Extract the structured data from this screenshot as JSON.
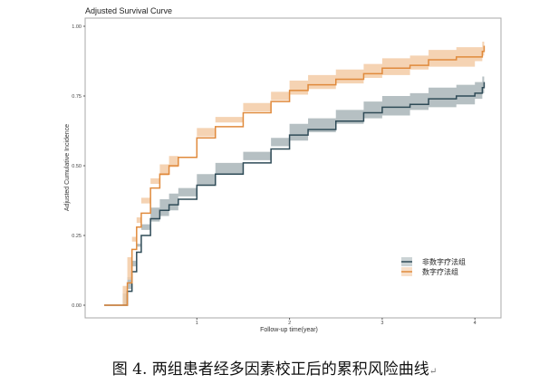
{
  "chart_data": {
    "type": "line",
    "title": "Adjusted Survival Curve",
    "xlabel": "Follow-up time(year)",
    "ylabel": "Adjusted Cumulative Incidence",
    "xlim": [
      0,
      4.2
    ],
    "ylim": [
      0,
      1
    ],
    "xticks": [
      "1",
      "2",
      "3",
      "4"
    ],
    "yticks": [
      "0.00",
      "0.25",
      "0.50",
      "0.75",
      "1.00"
    ],
    "grid": false,
    "legend_position": "bottom-right",
    "series": [
      {
        "name": "非数字疗法组",
        "color": "#2f4b57",
        "band_color": "#a9b5b9",
        "x": [
          0,
          0.2,
          0.25,
          0.3,
          0.35,
          0.4,
          0.5,
          0.6,
          0.7,
          0.8,
          1.0,
          1.2,
          1.5,
          1.8,
          2.0,
          2.2,
          2.5,
          2.8,
          3.0,
          3.3,
          3.5,
          3.8,
          4.0,
          4.08,
          4.1
        ],
        "y": [
          0,
          0,
          0.05,
          0.12,
          0.19,
          0.25,
          0.31,
          0.34,
          0.36,
          0.38,
          0.43,
          0.47,
          0.51,
          0.56,
          0.61,
          0.63,
          0.66,
          0.69,
          0.71,
          0.72,
          0.74,
          0.75,
          0.76,
          0.78,
          0.8
        ],
        "band": 0.04
      },
      {
        "name": "数字疗法组",
        "color": "#e08a3c",
        "band_color": "#f3cba6",
        "x": [
          0,
          0.2,
          0.25,
          0.3,
          0.35,
          0.4,
          0.5,
          0.6,
          0.7,
          0.8,
          1.0,
          1.2,
          1.5,
          1.8,
          2.0,
          2.2,
          2.5,
          2.8,
          3.0,
          3.3,
          3.5,
          3.8,
          4.0,
          4.08,
          4.1
        ],
        "y": [
          0,
          0,
          0.08,
          0.2,
          0.28,
          0.33,
          0.42,
          0.47,
          0.5,
          0.53,
          0.6,
          0.64,
          0.69,
          0.73,
          0.77,
          0.79,
          0.81,
          0.83,
          0.85,
          0.86,
          0.88,
          0.89,
          0.89,
          0.91,
          0.93
        ],
        "band": 0.035
      }
    ]
  },
  "caption": "图 4. 两组患者经多因素校正后的累积风险曲线",
  "caption_mark": "↵"
}
